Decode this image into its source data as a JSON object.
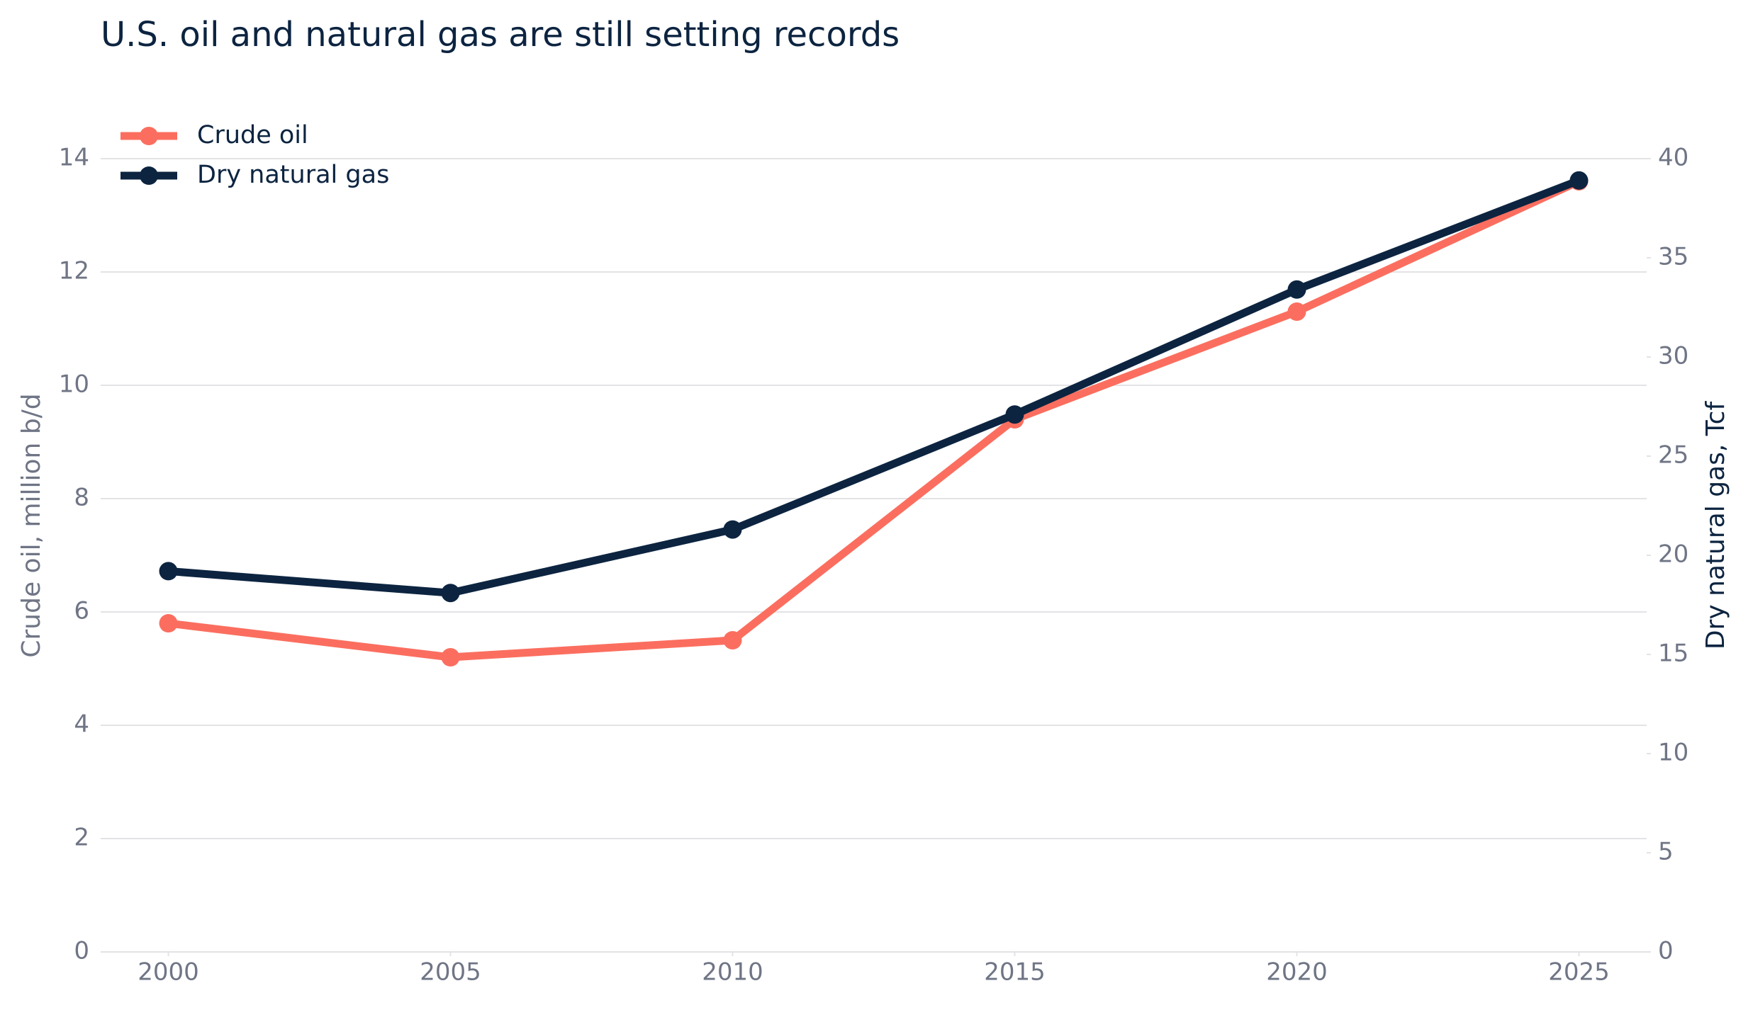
{
  "chart_data": {
    "type": "line",
    "title": "U.S. oil and natural gas are still setting records",
    "ylabel": "Crude oil, million b/d",
    "y2label": "Dry natural gas, Tcf",
    "x": [
      2000,
      2005,
      2010,
      2015,
      2020,
      2025
    ],
    "xlim": [
      1998.8,
      2026.2
    ],
    "xticks": [
      2000,
      2005,
      2010,
      2015,
      2020,
      2025
    ],
    "ylim": [
      0,
      14
    ],
    "yticks": [
      0,
      2,
      4,
      6,
      8,
      10,
      12,
      14
    ],
    "y2lim": [
      0,
      40
    ],
    "y2ticks": [
      0,
      5,
      10,
      15,
      20,
      25,
      30,
      35,
      40
    ],
    "grid": true,
    "legend": "upper left",
    "series": [
      {
        "name": "Crude oil",
        "color": "#fb6e5f",
        "values": [
          5.8,
          5.2,
          5.5,
          9.4,
          11.3,
          13.6
        ]
      },
      {
        "name": "Dry natural gas",
        "color": "#0c2440",
        "axis": "y2",
        "values": [
          19.2,
          18.1,
          21.3,
          27.1,
          33.4,
          38.9
        ]
      }
    ]
  }
}
